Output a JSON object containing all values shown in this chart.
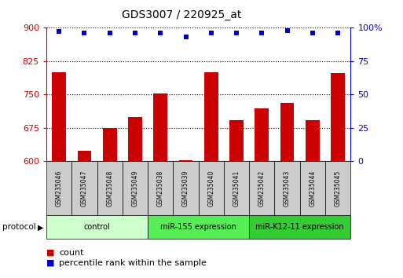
{
  "title": "GDS3007 / 220925_at",
  "samples": [
    "GSM235046",
    "GSM235047",
    "GSM235048",
    "GSM235049",
    "GSM235038",
    "GSM235039",
    "GSM235040",
    "GSM235041",
    "GSM235042",
    "GSM235043",
    "GSM235044",
    "GSM235045"
  ],
  "bar_values": [
    800,
    623,
    675,
    700,
    752,
    603,
    800,
    693,
    718,
    732,
    693,
    798
  ],
  "percentile_values": [
    97,
    96,
    96,
    96,
    96,
    93,
    96,
    96,
    96,
    98,
    96,
    96
  ],
  "ylim_left": [
    600,
    900
  ],
  "ylim_right": [
    0,
    100
  ],
  "yticks_left": [
    600,
    675,
    750,
    825,
    900
  ],
  "yticks_right": [
    0,
    25,
    50,
    75,
    100
  ],
  "bar_color": "#cc0000",
  "dot_color": "#0000cc",
  "groups": [
    {
      "label": "control",
      "start": 0,
      "end": 4,
      "color": "#ccffcc"
    },
    {
      "label": "miR-155 expression",
      "start": 4,
      "end": 8,
      "color": "#55ee55"
    },
    {
      "label": "miR-K12-11 expression",
      "start": 8,
      "end": 12,
      "color": "#33cc33"
    }
  ],
  "protocol_label": "protocol",
  "legend_count_label": "count",
  "legend_pct_label": "percentile rank within the sample",
  "background_color": "#ffffff",
  "plot_bg_color": "#ffffff",
  "tick_label_color_left": "#cc0000",
  "tick_label_color_right": "#0000cc",
  "tick_box_color": "#cccccc",
  "grid_linestyle": ":",
  "grid_color": "#000000",
  "grid_linewidth": 0.8
}
